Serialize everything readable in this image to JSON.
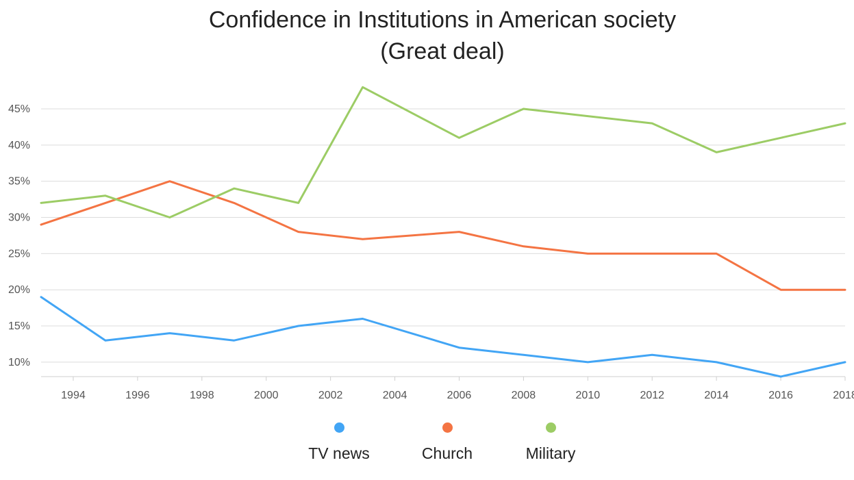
{
  "chart_data": {
    "type": "line",
    "title_line1": "Confidence in Institutions in American society",
    "title_line2": "(Great deal)",
    "xlabel": "",
    "ylabel": "",
    "x": [
      1993,
      1995,
      1997,
      1999,
      2001,
      2003,
      2006,
      2008,
      2010,
      2012,
      2014,
      2016,
      2018
    ],
    "xlim": [
      1993,
      2018
    ],
    "ylim": [
      8,
      49
    ],
    "x_ticks": [
      "1994",
      "1996",
      "1998",
      "2000",
      "2002",
      "2004",
      "2006",
      "2008",
      "2010",
      "2012",
      "2014",
      "2016",
      "2018"
    ],
    "y_ticks": [
      "10%",
      "15%",
      "20%",
      "25%",
      "30%",
      "35%",
      "40%",
      "45%"
    ],
    "grid": true,
    "legend_position": "bottom",
    "series": [
      {
        "name": "TV news",
        "color": "#42a5f5",
        "values": [
          19,
          13,
          14,
          13,
          15,
          16,
          12,
          11,
          10,
          11,
          10,
          8,
          10
        ]
      },
      {
        "name": "Church",
        "color": "#f47443",
        "values": [
          29,
          32,
          35,
          32,
          28,
          27,
          28,
          26,
          25,
          25,
          25,
          20,
          20
        ]
      },
      {
        "name": "Military",
        "color": "#9ccc65",
        "values": [
          32,
          33,
          30,
          34,
          32,
          48,
          41,
          45,
          44,
          43,
          39,
          41,
          43
        ]
      }
    ]
  }
}
